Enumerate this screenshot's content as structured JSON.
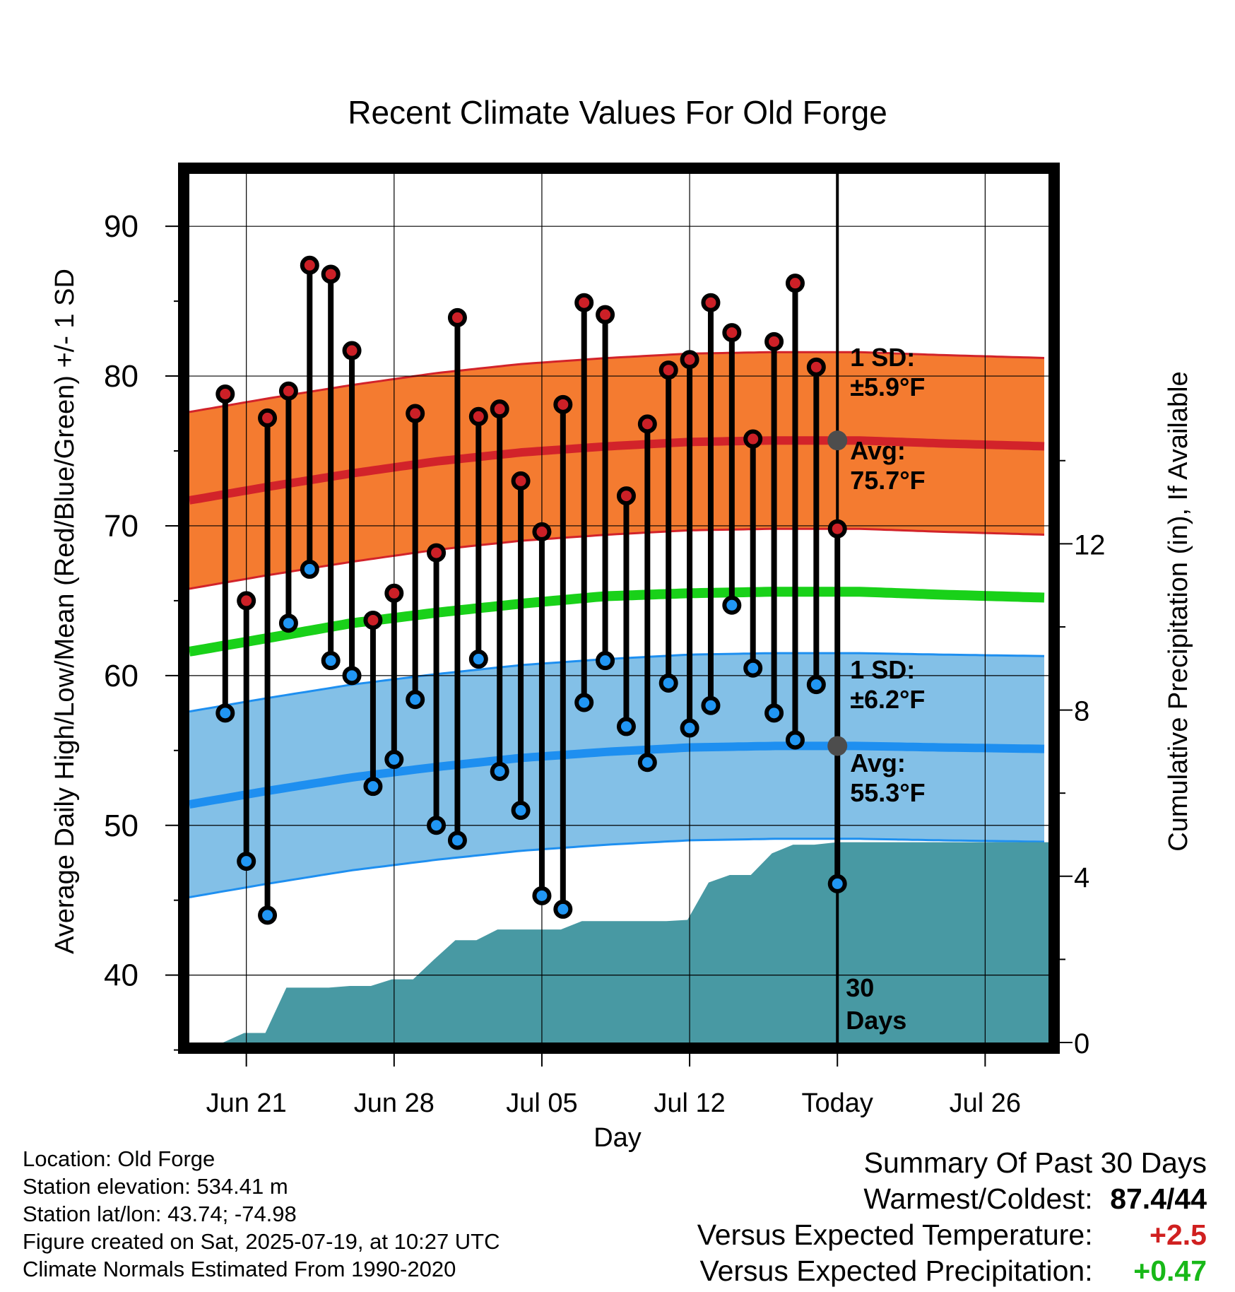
{
  "chart_data": {
    "type": "line",
    "title": "Recent Climate Values For Old Forge",
    "xlabel": "Day",
    "ylabel": "Average Daily High/Low/Mean (Red/Blue/Green) +/- 1 SD",
    "y2label": "Cumulative Precipitation (in), If Available",
    "ylim": [
      35.5,
      93.5
    ],
    "y2lim": [
      0,
      20.9
    ],
    "yticks": [
      "40",
      "50",
      "60",
      "70",
      "80",
      "90"
    ],
    "y2ticks": [
      "0",
      "4",
      "8",
      "12"
    ],
    "xticks": [
      {
        "day": 2.0,
        "label": "Jun 21"
      },
      {
        "day": 9.0,
        "label": "Jun 28"
      },
      {
        "day": 16.0,
        "label": "Jul 05"
      },
      {
        "day": 23.0,
        "label": "Jul 12"
      },
      {
        "day": 30.0,
        "label": "Today"
      },
      {
        "day": 37.0,
        "label": "Jul 26"
      }
    ],
    "xlim": [
      -0.7,
      40.0
    ],
    "days": [
      1,
      2,
      3,
      4,
      5,
      6,
      7,
      8,
      9,
      10,
      11,
      12,
      13,
      14,
      15,
      16,
      17,
      18,
      19,
      20,
      21,
      22,
      23,
      24,
      25,
      26,
      27,
      28,
      29,
      30
    ],
    "daily_high": [
      78.8,
      65.0,
      77.2,
      79.0,
      87.4,
      86.8,
      81.7,
      63.7,
      65.5,
      77.5,
      68.2,
      83.9,
      77.3,
      77.8,
      73.0,
      69.6,
      78.1,
      84.9,
      84.1,
      72.0,
      76.8,
      80.4,
      81.1,
      84.9,
      82.9,
      75.8,
      82.3,
      86.2,
      80.6,
      69.8
    ],
    "daily_low": [
      57.5,
      47.6,
      44.0,
      63.5,
      67.1,
      61.0,
      60.0,
      52.6,
      54.4,
      58.4,
      50.0,
      49.0,
      61.1,
      53.6,
      51.0,
      45.3,
      44.4,
      58.2,
      61.0,
      56.6,
      54.2,
      59.5,
      56.5,
      58.0,
      64.7,
      60.5,
      57.5,
      55.7,
      59.4,
      46.1
    ],
    "normals": {
      "x": [
        -0.7,
        3,
        7,
        11,
        15,
        19,
        23,
        27,
        31,
        35,
        40
      ],
      "avg_high": [
        71.7,
        72.6,
        73.5,
        74.3,
        74.9,
        75.3,
        75.6,
        75.7,
        75.7,
        75.5,
        75.3
      ],
      "avg_high_sd": 5.9,
      "avg_mean": [
        61.6,
        62.5,
        63.5,
        64.2,
        64.8,
        65.3,
        65.5,
        65.6,
        65.6,
        65.4,
        65.2
      ],
      "avg_low": [
        51.4,
        52.3,
        53.2,
        53.9,
        54.5,
        54.9,
        55.2,
        55.3,
        55.3,
        55.2,
        55.1
      ],
      "avg_low_sd": 6.2
    },
    "precip": {
      "x": [
        0.0,
        0.9,
        1.9,
        2.9,
        3.9,
        4.9,
        5.9,
        6.9,
        7.9,
        8.9,
        9.9,
        10.9,
        11.9,
        12.9,
        13.9,
        14.9,
        15.9,
        16.9,
        17.9,
        18.9,
        19.9,
        20.9,
        21.9,
        22.9,
        23.9,
        24.9,
        25.9,
        26.9,
        27.9,
        28.9,
        30.0,
        40.0
      ],
      "cumulative_in": [
        0.0,
        0.0,
        0.23,
        0.23,
        1.32,
        1.32,
        1.32,
        1.36,
        1.36,
        1.52,
        1.52,
        2.0,
        2.46,
        2.46,
        2.72,
        2.72,
        2.72,
        2.72,
        2.92,
        2.92,
        2.92,
        2.92,
        2.92,
        2.95,
        3.85,
        4.03,
        4.03,
        4.55,
        4.76,
        4.76,
        4.82,
        4.82
      ]
    },
    "annotations": {
      "high_sd_text": [
        "1 SD:",
        "±5.9°F"
      ],
      "high_avg_text": [
        "Avg:",
        "75.7°F"
      ],
      "low_sd_text": [
        "1 SD:",
        "±6.2°F"
      ],
      "low_avg_text": [
        "Avg:",
        "55.3°F"
      ],
      "days_text": [
        "30",
        "Days"
      ]
    },
    "today_marker": {
      "day": 30.0,
      "avg_high": 75.7,
      "avg_low": 55.3
    },
    "grid": true,
    "colors": {
      "high_band": "#f47b30",
      "high_line": "#d2232a",
      "low_band": "#83c0e7",
      "low_line": "#1e8ff0",
      "mean_line": "#19d119",
      "precip": "#4899a3",
      "annotation": "#4d4d4d",
      "high_dot": "#cc2027",
      "low_dot": "#2196f3"
    }
  },
  "footer": {
    "location": "Location: Old Forge",
    "elevation": "Station elevation: 534.41 m",
    "latlon": "Station lat/lon: 43.74; -74.98",
    "created": "Figure created on Sat, 2025-07-19, at 10:27 UTC",
    "normals_period": "Climate Normals Estimated From 1990-2020"
  },
  "summary": {
    "title": "Summary Of Past 30 Days",
    "warmest_label": "Warmest/Coldest:",
    "warmest_value": "87.4/44",
    "temp_label": "Versus Expected Temperature:",
    "temp_value": "+2.5",
    "temp_color": "#d02020",
    "precip_label": "Versus Expected Precipitation:",
    "precip_value": "+0.47",
    "precip_color": "#18b818"
  }
}
